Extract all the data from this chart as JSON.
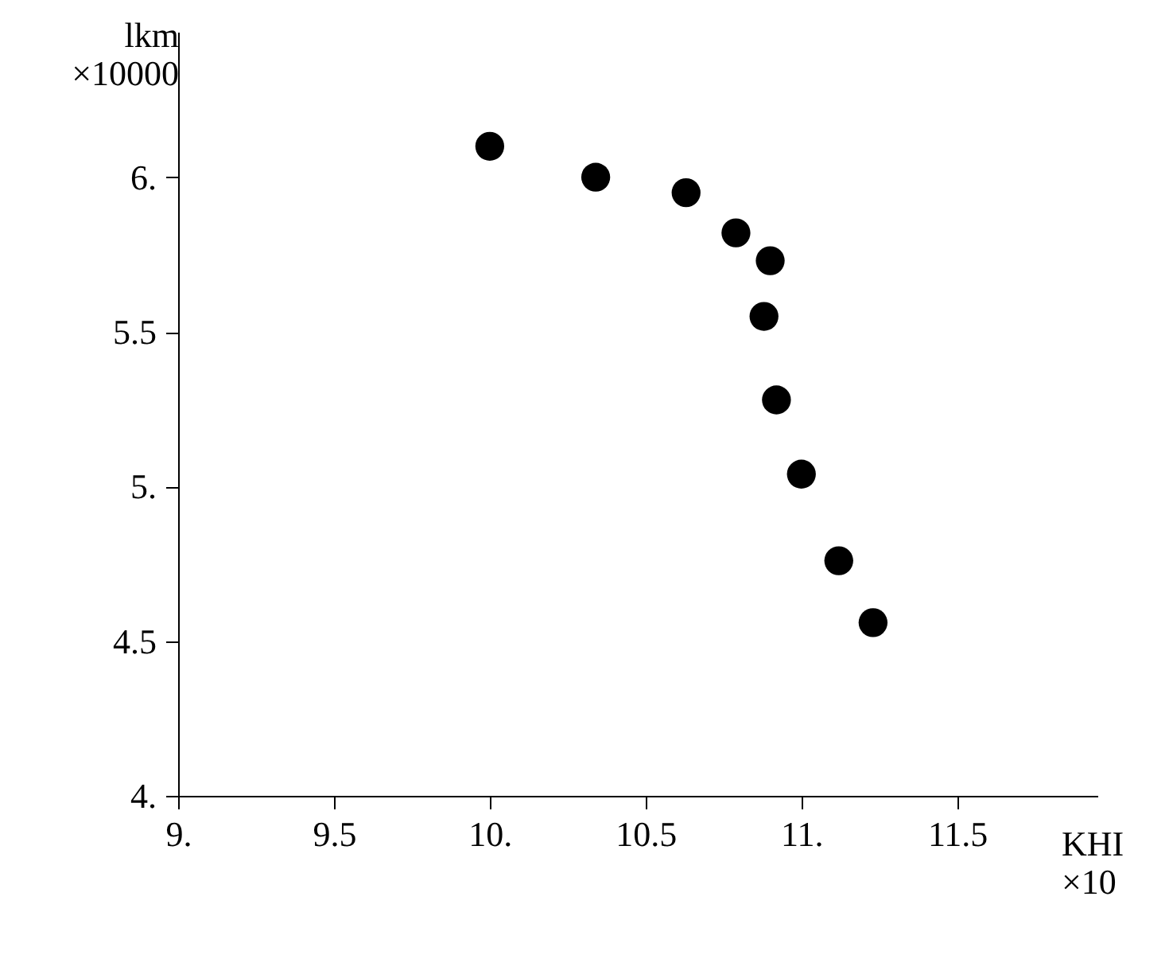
{
  "chart_data": {
    "type": "scatter",
    "xlabel": "KHI ×10",
    "ylabel": "lkm ×10000",
    "marker": "circle",
    "grid": false,
    "x": [
      10.0,
      10.34,
      10.63,
      10.79,
      10.9,
      10.88,
      10.92,
      11.0,
      11.12,
      11.23
    ],
    "series": [
      {
        "color": "#000000",
        "values": [
          6.1,
          6.0,
          5.95,
          5.82,
          5.73,
          5.55,
          5.28,
          5.04,
          4.76,
          4.56
        ]
      }
    ],
    "xlim": [
      9,
      11.95
    ],
    "ylim": [
      4,
      6.47
    ],
    "xticks": [
      {
        "value": 9,
        "label": "9."
      },
      {
        "value": 9.5,
        "label": "9.5"
      },
      {
        "value": 10,
        "label": "10."
      },
      {
        "value": 10.5,
        "label": "10.5"
      },
      {
        "value": 11,
        "label": "11."
      },
      {
        "value": 11.5,
        "label": "11.5"
      }
    ],
    "yticks": [
      {
        "value": 4,
        "label": "4."
      },
      {
        "value": 4.5,
        "label": "4.5"
      },
      {
        "value": 5,
        "label": "5."
      },
      {
        "value": 5.5,
        "label": "5.5"
      },
      {
        "value": 6,
        "label": "6."
      }
    ]
  }
}
